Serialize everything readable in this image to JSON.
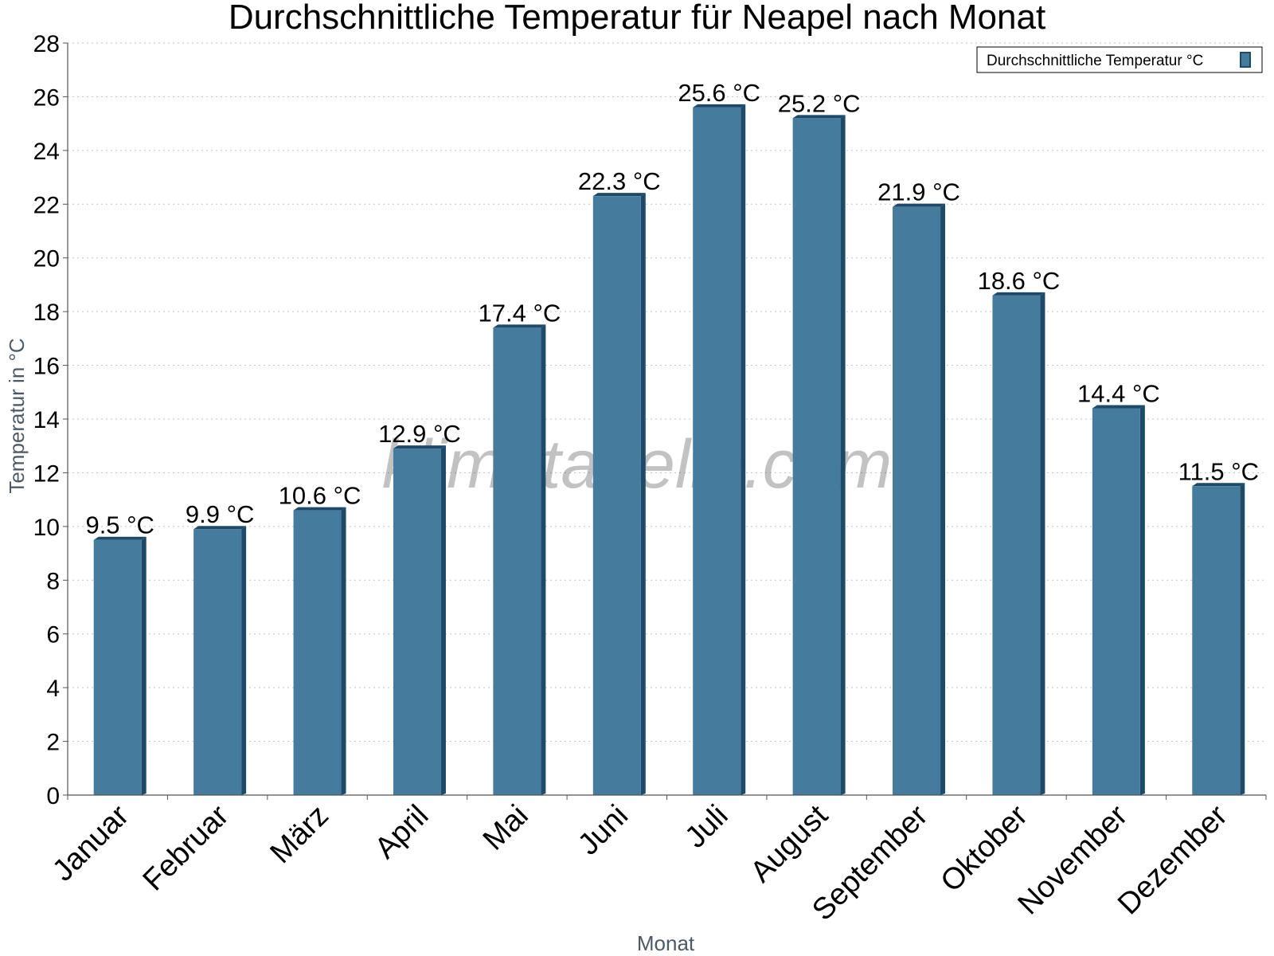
{
  "chart_data": {
    "type": "bar",
    "title": "Durchschnittliche Temperatur für Neapel nach Monat",
    "xlabel": "Monat",
    "ylabel": "Temperatur in °C",
    "categories": [
      "Januar",
      "Februar",
      "März",
      "April",
      "Mai",
      "Juni",
      "Juli",
      "August",
      "September",
      "Oktober",
      "November",
      "Dezember"
    ],
    "series": [
      {
        "name": "Durchschnittliche Temperatur °C",
        "values": [
          9.5,
          9.9,
          10.6,
          12.9,
          17.4,
          22.3,
          25.6,
          25.2,
          21.9,
          18.6,
          14.4,
          11.5
        ],
        "data_labels": [
          "9.5 °C",
          "9.9 °C",
          "10.6 °C",
          "12.9 °C",
          "17.4 °C",
          "22.3 °C",
          "25.6 °C",
          "25.2 °C",
          "21.9 °C",
          "18.6 °C",
          "14.4 °C",
          "11.5 °C"
        ],
        "color": "#457b9d",
        "edge_color": "#1e4a6a"
      }
    ],
    "ylim": [
      0,
      28
    ],
    "yticks": [
      0,
      2,
      4,
      6,
      8,
      10,
      12,
      14,
      16,
      18,
      20,
      22,
      24,
      26,
      28
    ],
    "grid": true,
    "legend_position": "top-right"
  },
  "watermark": "klimatabelle.com"
}
